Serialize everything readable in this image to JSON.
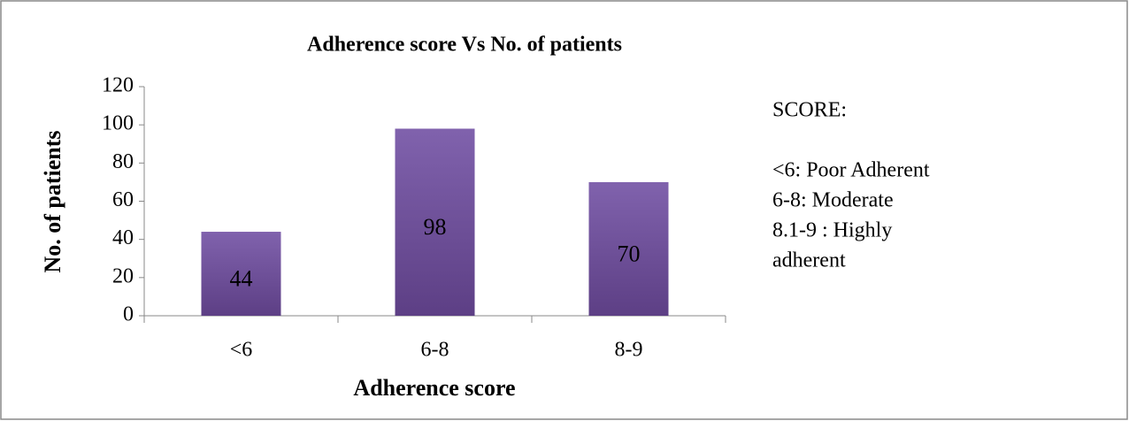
{
  "chart_data": {
    "type": "bar",
    "title": "Adherence score Vs No. of patients",
    "x_label": "Adherence score",
    "y_label": "No. of patients",
    "categories": [
      "<6",
      "6-8",
      "8-9"
    ],
    "values": [
      44,
      98,
      70
    ],
    "color": "#7353a0",
    "ylim": [
      0,
      120
    ],
    "yticks": [
      0,
      20,
      40,
      60,
      80,
      100,
      120
    ],
    "grid": false,
    "annotation": [
      "SCORE:",
      "<6: Poor Adherent",
      "6-8: Moderate",
      "8.1-9 : Highly",
      "adherent"
    ]
  }
}
